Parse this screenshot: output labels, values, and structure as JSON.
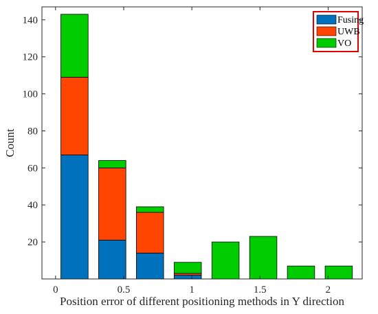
{
  "chart_data": {
    "type": "bar",
    "stacked": true,
    "xlabel": "Position error of different positioning methods in Y direction",
    "ylabel": "Count",
    "xlim": [
      -0.1,
      2.25
    ],
    "ylim": [
      0,
      147
    ],
    "xticks": [
      0,
      0.5,
      1,
      1.5,
      2
    ],
    "xtick_labels": [
      "0",
      "0.5",
      "1",
      "1.5",
      "2"
    ],
    "yticks": [
      20,
      40,
      60,
      80,
      100,
      120,
      140
    ],
    "ytick_labels": [
      "20",
      "40",
      "60",
      "80",
      "100",
      "120",
      "140"
    ],
    "bin_width": 0.2,
    "x": [
      0.139,
      0.416,
      0.693,
      0.97,
      1.247,
      1.524,
      1.801,
      2.078
    ],
    "series": [
      {
        "name": "Fusing",
        "color": "#0072BD",
        "values": [
          67,
          21,
          14,
          2,
          0,
          0,
          0,
          0
        ]
      },
      {
        "name": "UWB",
        "color": "#FF4500",
        "values": [
          42,
          39,
          22,
          1,
          0,
          0,
          0,
          0
        ]
      },
      {
        "name": "VO",
        "color": "#00CC00",
        "values": [
          34,
          4,
          3,
          6,
          20,
          23,
          7,
          7
        ]
      }
    ],
    "legend": {
      "placement": "top-right",
      "border_color": "#E00000"
    },
    "grid": false
  }
}
